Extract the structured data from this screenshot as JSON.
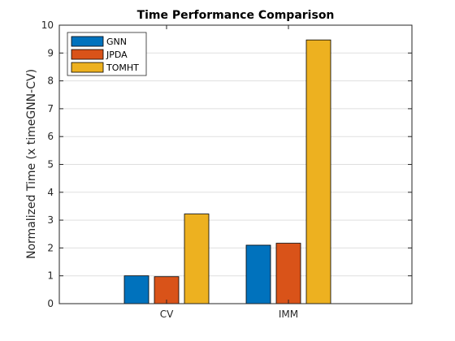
{
  "chart_data": {
    "type": "bar",
    "title": "Time Performance Comparison",
    "xlabel": "",
    "ylabel": "Normalized Time (x timeGNN-CV)",
    "categories": [
      "CV",
      "IMM"
    ],
    "series": [
      {
        "name": "GNN",
        "values": [
          1.0,
          2.1
        ],
        "color": "#0072BD"
      },
      {
        "name": "JPDA",
        "values": [
          0.97,
          2.17
        ],
        "color": "#D95319"
      },
      {
        "name": "TOMHT",
        "values": [
          3.22,
          9.47
        ],
        "color": "#EDB120"
      }
    ],
    "ylim": [
      0,
      10
    ],
    "yticks": [
      0,
      1,
      2,
      3,
      4,
      5,
      6,
      7,
      8,
      9,
      10
    ],
    "grid": "y",
    "legend_position": "top-left"
  }
}
